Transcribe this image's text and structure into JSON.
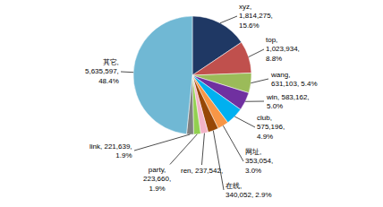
{
  "chart_data": {
    "type": "pie",
    "categories": [
      "xyz",
      "top",
      "wang",
      "win",
      "club",
      "网址",
      "在线",
      "ren",
      "party",
      "link",
      "其它"
    ],
    "values": [
      1814275,
      1023934,
      631103,
      583162,
      575196,
      353054,
      340052,
      237542,
      223660,
      221639,
      5635597
    ],
    "value_labels": [
      "xyz,\n1,814,275,\n15.6%",
      "top,\n1,023,934,\n8.8%",
      "wang,\n631,103, 5.4%",
      "win, 583,162,\n5.0%",
      "club,\n575,196,\n4.9%",
      "网址,\n353,054,\n3.0%",
      "在线,\n340,052, 2.9%",
      "ren, 237,542,",
      "party,\n223,660,\n1.9%",
      "link, 221,639,\n1.9%",
      "其它,\n5,635,597,\n48.4%"
    ],
    "colors": [
      "#1f3864",
      "#c0504d",
      "#9bbb59",
      "#7030a0",
      "#00b0f0",
      "#f79646",
      "#974706",
      "#f2b3c7",
      "#92d050",
      "#808080",
      "#70b8d4"
    ]
  }
}
